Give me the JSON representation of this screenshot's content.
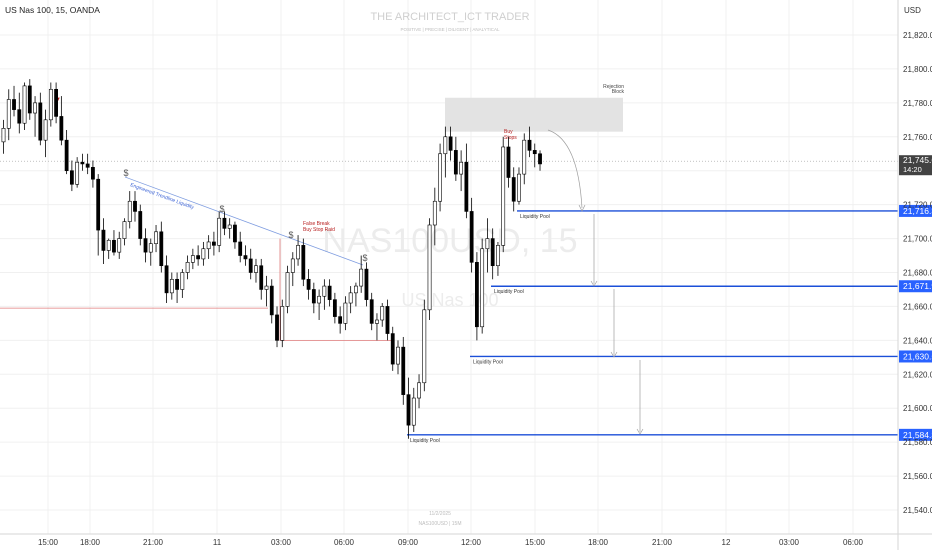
{
  "header": {
    "symbol_title": "US Nas 100, 15, OANDA",
    "currency": "USD",
    "brand": "THE ARCHITECT_ICT TRADER",
    "brand_tagline": "POSITIVE | PRECISE | DILIGENT | ANALYTICAL",
    "watermark_symbol": "NAS100USD, 15",
    "watermark_name": "US Nas 100",
    "footer_date": "11/2/2025",
    "footer_symbol": "NAS100USD | 15M"
  },
  "colors": {
    "up": "#ffffff",
    "down": "#000000",
    "outline": "#000000",
    "grid": "#f0f0f0",
    "level": "#1b4fd8",
    "badge": "#2962ff",
    "trendline": "#7f9de0",
    "red_line": "#e07b7b",
    "annotation_red": "#b71c1c",
    "rejection_zone": "#e3e3e3"
  },
  "chart_data": {
    "type": "candlestick",
    "title": "US Nas 100, 15, OANDA",
    "y_axis": {
      "ylim": [
        21528,
        21840
      ],
      "ticks": [
        21540,
        21560,
        21580,
        21600,
        21620,
        21640,
        21660,
        21680,
        21700,
        21720,
        21740,
        21760,
        21780,
        21800,
        21820
      ],
      "tick_labels": [
        "21,540.0",
        "21,560.0",
        "21,580.0",
        "21,600.0",
        "21,620.0",
        "21,640.0",
        "21,660.0",
        "21,680.0",
        "21,700.0",
        "21,720.0",
        "21,740.0",
        "21,760.0",
        "21,780.0",
        "21,800.0",
        "21,820.0"
      ]
    },
    "x_axis": {
      "labels": [
        "15:00",
        "18:00",
        "21:00",
        "11",
        "03:00",
        "06:00",
        "09:00",
        "12:00",
        "15:00",
        "18:00",
        "21:00",
        "12",
        "03:00",
        "06:00"
      ],
      "positions": [
        48,
        90,
        153,
        217,
        281,
        344,
        408,
        471,
        535,
        598,
        662,
        726,
        789,
        853
      ]
    },
    "grid": true,
    "current_price": {
      "value": 21745.6,
      "label": "21,745.6",
      "countdown": "14:20"
    },
    "candles": [
      [
        21757,
        21770,
        21750,
        21765
      ],
      [
        21765,
        21788,
        21758,
        21782
      ],
      [
        21782,
        21790,
        21772,
        21776
      ],
      [
        21776,
        21786,
        21762,
        21768
      ],
      [
        21768,
        21792,
        21764,
        21790
      ],
      [
        21790,
        21794,
        21770,
        21774
      ],
      [
        21774,
        21784,
        21760,
        21780
      ],
      [
        21780,
        21786,
        21755,
        21758
      ],
      [
        21758,
        21776,
        21748,
        21770
      ],
      [
        21770,
        21792,
        21766,
        21788
      ],
      [
        21788,
        21792,
        21768,
        21772
      ],
      [
        21772,
        21784,
        21755,
        21758
      ],
      [
        21758,
        21764,
        21738,
        21740
      ],
      [
        21740,
        21746,
        21728,
        21732
      ],
      [
        21732,
        21748,
        21730,
        21745
      ],
      [
        21745,
        21750,
        21740,
        21744
      ],
      [
        21744,
        21750,
        21738,
        21742
      ],
      [
        21742,
        21746,
        21730,
        21735
      ],
      [
        21735,
        21738,
        21690,
        21705
      ],
      [
        21705,
        21712,
        21685,
        21693
      ],
      [
        21693,
        21700,
        21688,
        21699
      ],
      [
        21699,
        21705,
        21690,
        21692
      ],
      [
        21692,
        21704,
        21688,
        21700
      ],
      [
        21700,
        21712,
        21696,
        21710
      ],
      [
        21710,
        21728,
        21706,
        21722
      ],
      [
        21722,
        21728,
        21710,
        21716
      ],
      [
        21716,
        21720,
        21696,
        21700
      ],
      [
        21700,
        21706,
        21686,
        21692
      ],
      [
        21692,
        21700,
        21684,
        21697
      ],
      [
        21697,
        21708,
        21692,
        21704
      ],
      [
        21704,
        21710,
        21680,
        21684
      ],
      [
        21684,
        21690,
        21662,
        21668
      ],
      [
        21668,
        21680,
        21664,
        21676
      ],
      [
        21676,
        21680,
        21662,
        21670
      ],
      [
        21670,
        21682,
        21665,
        21680
      ],
      [
        21680,
        21690,
        21676,
        21686
      ],
      [
        21686,
        21694,
        21682,
        21690
      ],
      [
        21690,
        21696,
        21684,
        21688
      ],
      [
        21688,
        21698,
        21684,
        21694
      ],
      [
        21694,
        21702,
        21688,
        21698
      ],
      [
        21698,
        21704,
        21690,
        21696
      ],
      [
        21696,
        21716,
        21692,
        21712
      ],
      [
        21712,
        21716,
        21702,
        21706
      ],
      [
        21706,
        21712,
        21700,
        21708
      ],
      [
        21708,
        21710,
        21694,
        21698
      ],
      [
        21698,
        21704,
        21686,
        21690
      ],
      [
        21690,
        21696,
        21684,
        21688
      ],
      [
        21688,
        21694,
        21676,
        21680
      ],
      [
        21680,
        21688,
        21674,
        21684
      ],
      [
        21684,
        21688,
        21664,
        21670
      ],
      [
        21670,
        21678,
        21660,
        21672
      ],
      [
        21672,
        21676,
        21650,
        21655
      ],
      [
        21655,
        21660,
        21636,
        21640
      ],
      [
        21640,
        21664,
        21636,
        21660
      ],
      [
        21660,
        21684,
        21656,
        21680
      ],
      [
        21680,
        21692,
        21672,
        21688
      ],
      [
        21688,
        21702,
        21684,
        21696
      ],
      [
        21696,
        21700,
        21672,
        21676
      ],
      [
        21676,
        21682,
        21664,
        21670
      ],
      [
        21670,
        21674,
        21656,
        21662
      ],
      [
        21662,
        21670,
        21652,
        21666
      ],
      [
        21666,
        21676,
        21658,
        21672
      ],
      [
        21672,
        21676,
        21660,
        21664
      ],
      [
        21664,
        21668,
        21650,
        21654
      ],
      [
        21654,
        21660,
        21644,
        21650
      ],
      [
        21650,
        21666,
        21646,
        21662
      ],
      [
        21662,
        21672,
        21656,
        21668
      ],
      [
        21668,
        21674,
        21660,
        21672
      ],
      [
        21672,
        21690,
        21668,
        21682
      ],
      [
        21682,
        21686,
        21660,
        21664
      ],
      [
        21664,
        21668,
        21646,
        21650
      ],
      [
        21650,
        21656,
        21640,
        21652
      ],
      [
        21652,
        21662,
        21648,
        21660
      ],
      [
        21660,
        21664,
        21640,
        21644
      ],
      [
        21644,
        21648,
        21622,
        21626
      ],
      [
        21626,
        21640,
        21620,
        21636
      ],
      [
        21636,
        21642,
        21602,
        21608
      ],
      [
        21608,
        21618,
        21582,
        21590
      ],
      [
        21590,
        21612,
        21586,
        21606
      ],
      [
        21606,
        21620,
        21600,
        21615
      ],
      [
        21615,
        21664,
        21610,
        21658
      ],
      [
        21658,
        21712,
        21652,
        21708
      ],
      [
        21708,
        21730,
        21696,
        21722
      ],
      [
        21722,
        21756,
        21716,
        21750
      ],
      [
        21750,
        21766,
        21736,
        21760
      ],
      [
        21760,
        21766,
        21746,
        21752
      ],
      [
        21752,
        21760,
        21734,
        21738
      ],
      [
        21738,
        21752,
        21728,
        21745
      ],
      [
        21745,
        21756,
        21712,
        21716
      ],
      [
        21716,
        21724,
        21680,
        21686
      ],
      [
        21686,
        21692,
        21640,
        21648
      ],
      [
        21648,
        21700,
        21644,
        21694
      ],
      [
        21694,
        21712,
        21680,
        21700
      ],
      [
        21700,
        21706,
        21676,
        21684
      ],
      [
        21684,
        21698,
        21678,
        21696
      ],
      [
        21696,
        21760,
        21692,
        21754
      ],
      [
        21754,
        21760,
        21730,
        21736
      ],
      [
        21736,
        21742,
        21716,
        21722
      ],
      [
        21722,
        21742,
        21720,
        21738
      ],
      [
        21738,
        21762,
        21732,
        21758
      ],
      [
        21758,
        21766,
        21748,
        21752
      ],
      [
        21752,
        21756,
        21742,
        21750
      ],
      [
        21750,
        21752,
        21740,
        21744
      ]
    ],
    "levels": [
      {
        "value": 21716.3,
        "label": "21,716.3",
        "caption": "Liquidity Pool"
      },
      {
        "value": 21671.9,
        "label": "21,671.9",
        "caption": "Liquidity Pool"
      },
      {
        "value": 21630.5,
        "label": "21,630.5",
        "caption": "Liquidity Pool"
      },
      {
        "value": 21584.3,
        "label": "21,584.3",
        "caption": "Liquidity Pool"
      }
    ],
    "annotations": {
      "rejection_block": {
        "label_line1": "Rejection",
        "label_line2": "Block",
        "top": 21783,
        "bottom": 21763
      },
      "buy_stops": {
        "line1": "Buy",
        "line2": "Stops"
      },
      "false_break": {
        "line1": "False Break",
        "line2": "Buy Stop Raid"
      },
      "trendline_label": "Engineered Trendline Liquidity",
      "dollar_sign": "$",
      "red_line_value": 21659,
      "down_arrow": "▼"
    }
  }
}
